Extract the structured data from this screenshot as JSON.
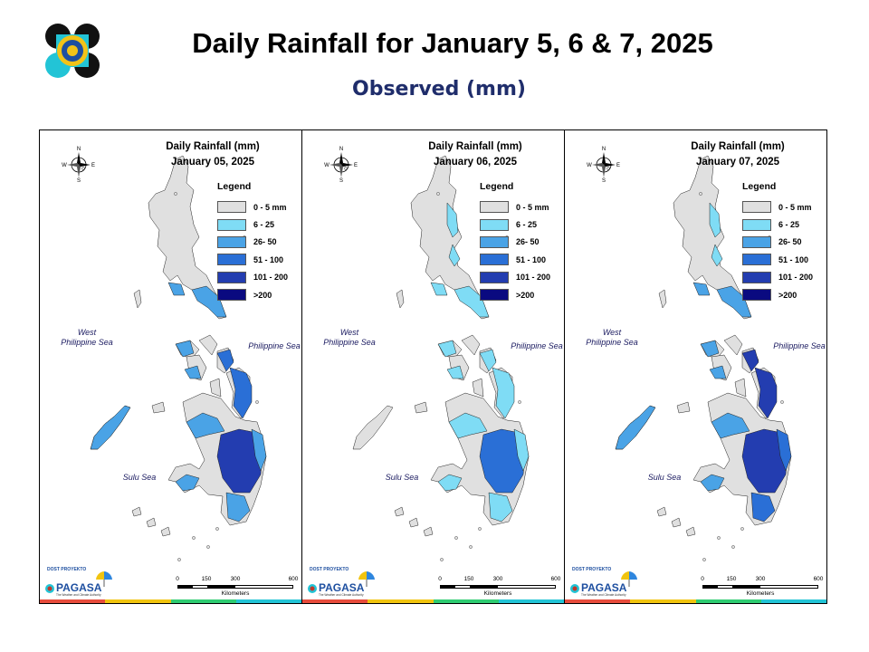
{
  "header": {
    "title": "Daily Rainfall for January 5, 6 & 7, 2025",
    "subtitle": "Observed (mm)"
  },
  "legend": {
    "title": "Legend",
    "classes": [
      {
        "label": "0 - 5 mm",
        "color": "#e0e0e0"
      },
      {
        "label": "6 - 25",
        "color": "#7fdcf5"
      },
      {
        "label": "26- 50",
        "color": "#4aa3e6"
      },
      {
        "label": "51 - 100",
        "color": "#2a6fd6"
      },
      {
        "label": "101 - 200",
        "color": "#233db0"
      },
      {
        "label": ">200",
        "color": "#0a0a80"
      }
    ]
  },
  "seas": {
    "west": "West\nPhilippine Sea",
    "philippine": "Philippine Sea",
    "sulu": "Sulu Sea"
  },
  "compass": {
    "n": "N",
    "s": "S",
    "e": "E",
    "w": "W"
  },
  "scale": {
    "ticks": [
      "0",
      "150",
      "300",
      "600"
    ],
    "unit": "Kilometers"
  },
  "branding": {
    "agency": "PAGASA",
    "tagline": "The Weather and Climate Authority",
    "program": "DOST PROYEKTO"
  },
  "panels": [
    {
      "title_line1": "Daily Rainfall (mm)",
      "date": "January 05, 2025",
      "rain": {
        "luzon_east": 0,
        "bicol": 2,
        "visayas_east": 3,
        "visayas_west": 2,
        "palawan": 2,
        "mindanao_north": 2,
        "mindanao_central": 4,
        "mindanao_south": 2
      }
    },
    {
      "title_line1": "Daily Rainfall (mm)",
      "date": "January 06, 2025",
      "rain": {
        "luzon_east": 1,
        "bicol": 1,
        "visayas_east": 1,
        "visayas_west": 1,
        "palawan": 0,
        "mindanao_north": 1,
        "mindanao_central": 3,
        "mindanao_south": 1
      }
    },
    {
      "title_line1": "Daily Rainfall (mm)",
      "date": "January 07, 2025",
      "rain": {
        "luzon_east": 1,
        "bicol": 2,
        "visayas_east": 4,
        "visayas_west": 2,
        "palawan": 2,
        "mindanao_north": 2,
        "mindanao_central": 4,
        "mindanao_south": 3
      }
    }
  ]
}
